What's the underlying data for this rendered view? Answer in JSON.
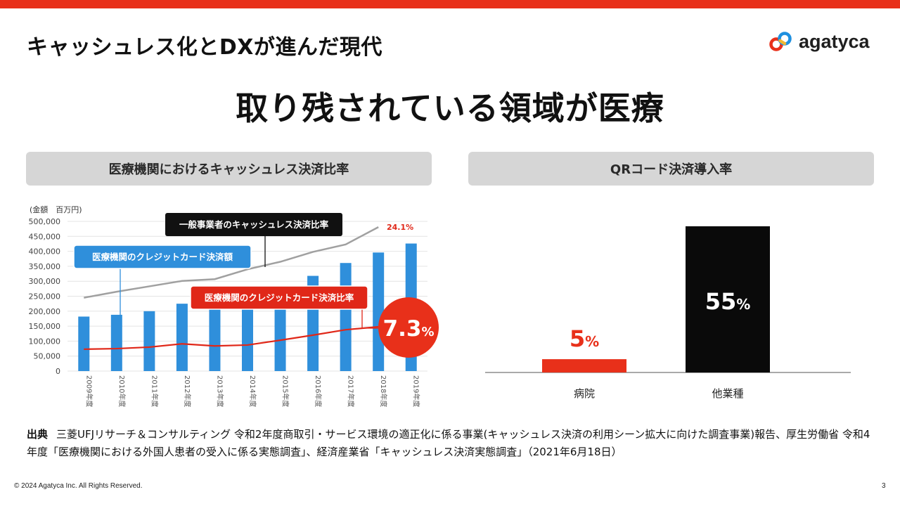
{
  "header": {
    "title": "キャッシュレス化とDXが進んだ現代",
    "logo_text": "agatyca"
  },
  "headline": "取り残されている領域が医療",
  "left_panel": {
    "title": "医療機関におけるキャッシュレス決済比率"
  },
  "right_panel": {
    "title": "QRコード決済導入率"
  },
  "chart_data": [
    {
      "type": "bar",
      "title": "医療機関におけるキャッシュレス決済比率",
      "ylabel": "(金額　百万円)",
      "ylim": [
        0,
        500000
      ],
      "yticks": [
        "500,000",
        "450,000",
        "400,000",
        "350,000",
        "300,000",
        "250,000",
        "200,000",
        "150,000",
        "100,000",
        "50,000",
        "0"
      ],
      "categories": [
        "2009年度",
        "2010年度",
        "2011年度",
        "2012年度",
        "2013年度",
        "2014年度",
        "2015年度",
        "2016年度",
        "2017年度",
        "2018年度",
        "2019年度"
      ],
      "series": [
        {
          "name": "医療機関のクレジットカード決済額",
          "kind": "bar",
          "color": "#2f8fdb",
          "values": [
            182000,
            188000,
            200000,
            225000,
            235000,
            255000,
            285000,
            318000,
            361000,
            396000,
            426000
          ]
        },
        {
          "name": "一般事業者のキャッシュレス決済比率",
          "kind": "line",
          "color": "#a0a0a0",
          "values": [
            245000,
            265000,
            283000,
            301000,
            307000,
            340000,
            365000,
            398000,
            423000,
            481000,
            null
          ],
          "end_label": "24.1%"
        },
        {
          "name": "医療機関のクレジットカード決済比率",
          "kind": "line",
          "color": "#e02718",
          "values": [
            73000,
            75000,
            80000,
            91000,
            84000,
            87000,
            103000,
            120000,
            138000,
            148000,
            null
          ],
          "end_label": "7.3%"
        }
      ],
      "callouts": {
        "general": "一般事業者のキャッシュレス決済比率",
        "medical_amount": "医療機関のクレジットカード決済額",
        "medical_ratio": "医療機関のクレジットカード決済比率",
        "gray_end": "24.1%",
        "big_num": "7.3",
        "big_pct": "%"
      }
    },
    {
      "type": "bar",
      "title": "QRコード決済導入率",
      "categories": [
        "病院",
        "他業種"
      ],
      "values": [
        5,
        55
      ],
      "colors": [
        "#e8301a",
        "#0a0a0a"
      ],
      "value_labels": [
        {
          "num": "5",
          "pct": "%"
        },
        {
          "num": "55",
          "pct": "%"
        }
      ]
    }
  ],
  "source": {
    "label": "出典",
    "text": "三菱UFJリサーチ＆コンサルティング 令和2年度商取引・サービス環境の適正化に係る事業(キャッシュレス決済の利用シーン拡大に向けた調査事業)報告、厚生労働省 令和4年度「医療機関における外国人患者の受入に係る実態調査」、経済産業省「キャッシュレス決済実態調査」（2021年6月18日）"
  },
  "footer": {
    "copyright": "© 2024 Agatyca Inc. All Rights Reserved.",
    "page": "3"
  },
  "colors": {
    "accent": "#e8301a",
    "bar_blue": "#2f8fdb",
    "gray_line": "#a0a0a0",
    "panel_bg": "#d6d6d6"
  }
}
